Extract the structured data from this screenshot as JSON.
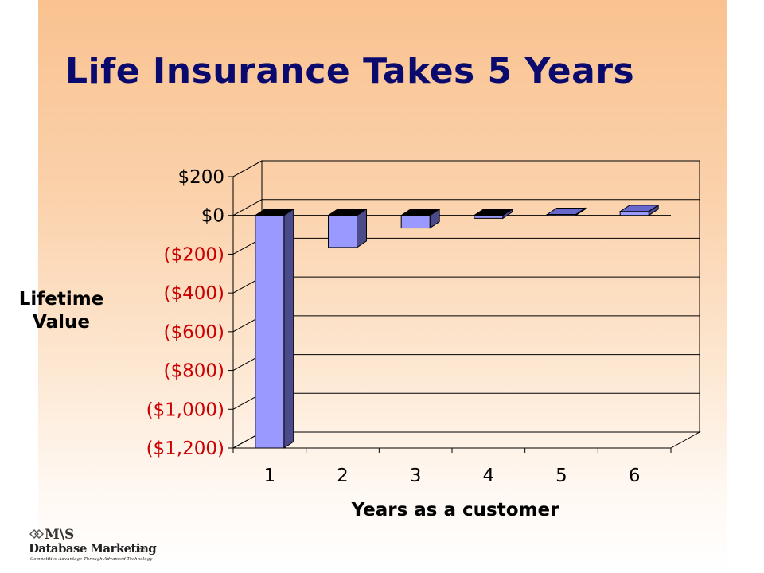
{
  "slide": {
    "title": "Life Insurance Takes 5 Years"
  },
  "logo": {
    "ms": "M\\S",
    "name": "Database Marketing",
    "inc": "Inc.",
    "tagline": "Competitive Advantage Through Advanced Technology"
  },
  "colors": {
    "bar_front": "#9999ff",
    "bar_side": "#4b4b8c",
    "bar_top": "#6666cc",
    "negative_label": "#cc0000",
    "title": "#0a0a6e"
  },
  "chart_data": {
    "type": "bar",
    "title": "",
    "xlabel": "Years as a customer",
    "ylabel": "Lifetime Value",
    "categories": [
      "1",
      "2",
      "3",
      "4",
      "5",
      "6"
    ],
    "values": [
      -1200,
      -165,
      -65,
      -15,
      5,
      20
    ],
    "ylim": [
      -1200,
      200
    ],
    "yticks": [
      200,
      0,
      -200,
      -400,
      -600,
      -800,
      -1000,
      -1200
    ],
    "ytick_labels": [
      "$200",
      "$0",
      "($200)",
      "($400)",
      "($600)",
      "($800)",
      "($1,000)",
      "($1,200)"
    ],
    "grid": true,
    "legend": false,
    "three_d": true
  }
}
